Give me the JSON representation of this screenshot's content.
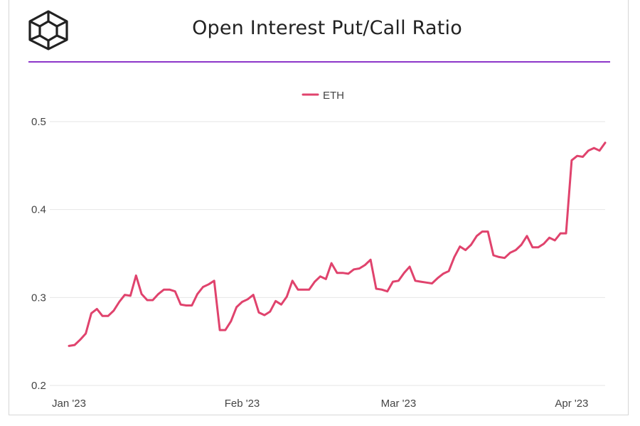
{
  "header": {
    "title": "Open Interest Put/Call Ratio",
    "logo_icon": "cube-logo-icon"
  },
  "colors": {
    "series": "#e0436d",
    "accent_rule": "#8c35c9",
    "grid": "#e6e6e6"
  },
  "chart_data": {
    "type": "line",
    "title": "Open Interest Put/Call Ratio",
    "xlabel": "",
    "ylabel": "",
    "ylim": [
      0.2,
      0.5
    ],
    "y_ticks": [
      0.2,
      0.3,
      0.4,
      0.5
    ],
    "y_tick_labels": [
      "0.2",
      "0.3",
      "0.4",
      "0.5"
    ],
    "x_ticks": [
      {
        "date": "2023-01-01",
        "label": "Jan '23"
      },
      {
        "date": "2023-02-01",
        "label": "Feb '23"
      },
      {
        "date": "2023-03-01",
        "label": "Mar '23"
      },
      {
        "date": "2023-04-01",
        "label": "Apr '23"
      }
    ],
    "xlim": [
      "2023-01-01",
      "2023-04-07"
    ],
    "grid": "horizontal",
    "legend": "top-center",
    "series": [
      {
        "name": "ETH",
        "color": "#e0436d",
        "x": [
          "2023-01-01",
          "2023-01-02",
          "2023-01-03",
          "2023-01-04",
          "2023-01-05",
          "2023-01-06",
          "2023-01-07",
          "2023-01-08",
          "2023-01-09",
          "2023-01-10",
          "2023-01-11",
          "2023-01-12",
          "2023-01-13",
          "2023-01-14",
          "2023-01-15",
          "2023-01-16",
          "2023-01-17",
          "2023-01-18",
          "2023-01-19",
          "2023-01-20",
          "2023-01-21",
          "2023-01-22",
          "2023-01-23",
          "2023-01-24",
          "2023-01-25",
          "2023-01-26",
          "2023-01-27",
          "2023-01-28",
          "2023-01-29",
          "2023-01-30",
          "2023-01-31",
          "2023-02-01",
          "2023-02-02",
          "2023-02-03",
          "2023-02-04",
          "2023-02-05",
          "2023-02-06",
          "2023-02-07",
          "2023-02-08",
          "2023-02-09",
          "2023-02-10",
          "2023-02-11",
          "2023-02-12",
          "2023-02-13",
          "2023-02-14",
          "2023-02-15",
          "2023-02-16",
          "2023-02-17",
          "2023-02-18",
          "2023-02-19",
          "2023-02-20",
          "2023-02-21",
          "2023-02-22",
          "2023-02-23",
          "2023-02-24",
          "2023-02-25",
          "2023-02-26",
          "2023-02-27",
          "2023-02-28",
          "2023-03-01",
          "2023-03-02",
          "2023-03-03",
          "2023-03-04",
          "2023-03-05",
          "2023-03-06",
          "2023-03-07",
          "2023-03-08",
          "2023-03-09",
          "2023-03-10",
          "2023-03-11",
          "2023-03-12",
          "2023-03-13",
          "2023-03-14",
          "2023-03-15",
          "2023-03-16",
          "2023-03-17",
          "2023-03-18",
          "2023-03-19",
          "2023-03-20",
          "2023-03-21",
          "2023-03-22",
          "2023-03-23",
          "2023-03-24",
          "2023-03-25",
          "2023-03-26",
          "2023-03-27",
          "2023-03-28",
          "2023-03-29",
          "2023-03-30",
          "2023-03-31",
          "2023-04-01",
          "2023-04-02",
          "2023-04-03",
          "2023-04-04",
          "2023-04-05",
          "2023-04-06",
          "2023-04-07"
        ],
        "values": [
          0.245,
          0.246,
          0.252,
          0.259,
          0.282,
          0.287,
          0.279,
          0.279,
          0.285,
          0.295,
          0.303,
          0.302,
          0.325,
          0.304,
          0.297,
          0.297,
          0.304,
          0.309,
          0.309,
          0.307,
          0.292,
          0.291,
          0.291,
          0.304,
          0.312,
          0.315,
          0.319,
          0.263,
          0.263,
          0.273,
          0.289,
          0.295,
          0.298,
          0.303,
          0.283,
          0.28,
          0.284,
          0.296,
          0.292,
          0.301,
          0.319,
          0.309,
          0.309,
          0.309,
          0.318,
          0.324,
          0.321,
          0.339,
          0.328,
          0.328,
          0.327,
          0.332,
          0.333,
          0.337,
          0.343,
          0.31,
          0.309,
          0.307,
          0.318,
          0.319,
          0.328,
          0.335,
          0.319,
          0.318,
          0.317,
          0.316,
          0.322,
          0.327,
          0.33,
          0.346,
          0.358,
          0.354,
          0.36,
          0.37,
          0.375,
          0.375,
          0.348,
          0.346,
          0.345,
          0.351,
          0.354,
          0.36,
          0.37,
          0.357,
          0.357,
          0.361,
          0.368,
          0.365,
          0.373,
          0.373,
          0.456,
          0.461,
          0.46,
          0.467,
          0.47,
          0.467,
          0.476
        ]
      }
    ]
  }
}
